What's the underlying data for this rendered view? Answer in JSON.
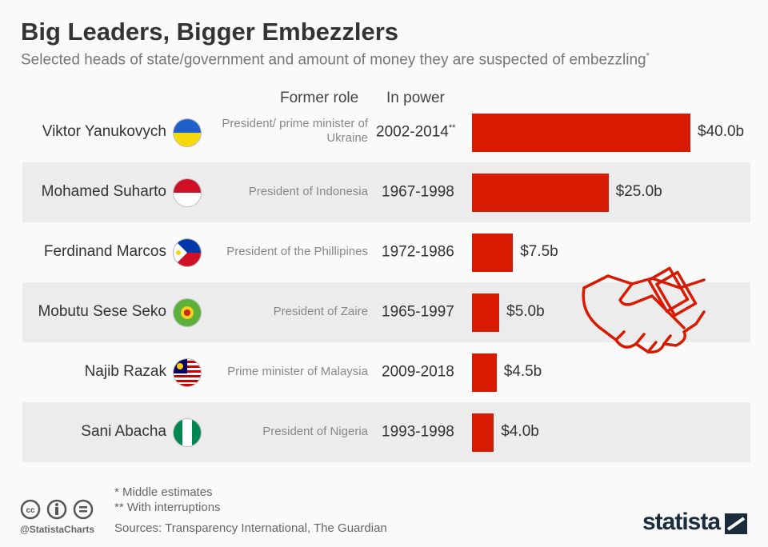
{
  "title": "Big Leaders, Bigger Embezzlers",
  "subtitle": "Selected heads of state/government and amount of money they are suspected of embezzling",
  "subtitle_mark": "*",
  "headers": {
    "role": "Former role",
    "power": "In power"
  },
  "footer": {
    "note1": "*   Middle estimates",
    "note2": "** With interruptions",
    "sources": "Sources: Transparency International, The Guardian",
    "handle": "@StatistaCharts",
    "brand": "statista"
  },
  "colors": {
    "bar": "#d81b00"
  },
  "chart_data": {
    "type": "bar",
    "title": "Big Leaders, Bigger Embezzlers",
    "categories": [
      "Viktor Yanukovych",
      "Mohamed Suharto",
      "Ferdinand Marcos",
      "Mobutu Sese Seko",
      "Najib Razak",
      "Sani Abacha"
    ],
    "roles": [
      "President/ prime minister of Ukraine",
      "President of Indonesia",
      "President of the Phillipines",
      "President of Zaire",
      "Prime minister of Malaysia",
      "President of Nigeria"
    ],
    "years": [
      "2002-2014",
      "1967-1998",
      "1972-1986",
      "1965-1997",
      "2009-2018",
      "1993-1998"
    ],
    "year_marks": [
      "**",
      "",
      "",
      "",
      "",
      ""
    ],
    "values": [
      40.0,
      25.0,
      7.5,
      5.0,
      4.5,
      4.0
    ],
    "labels": [
      "$40.0b",
      "$25.0b",
      "$7.5b",
      "$5.0b",
      "$4.5b",
      "$4.0b"
    ],
    "unit": "billion USD",
    "xlim": [
      0,
      40
    ]
  }
}
